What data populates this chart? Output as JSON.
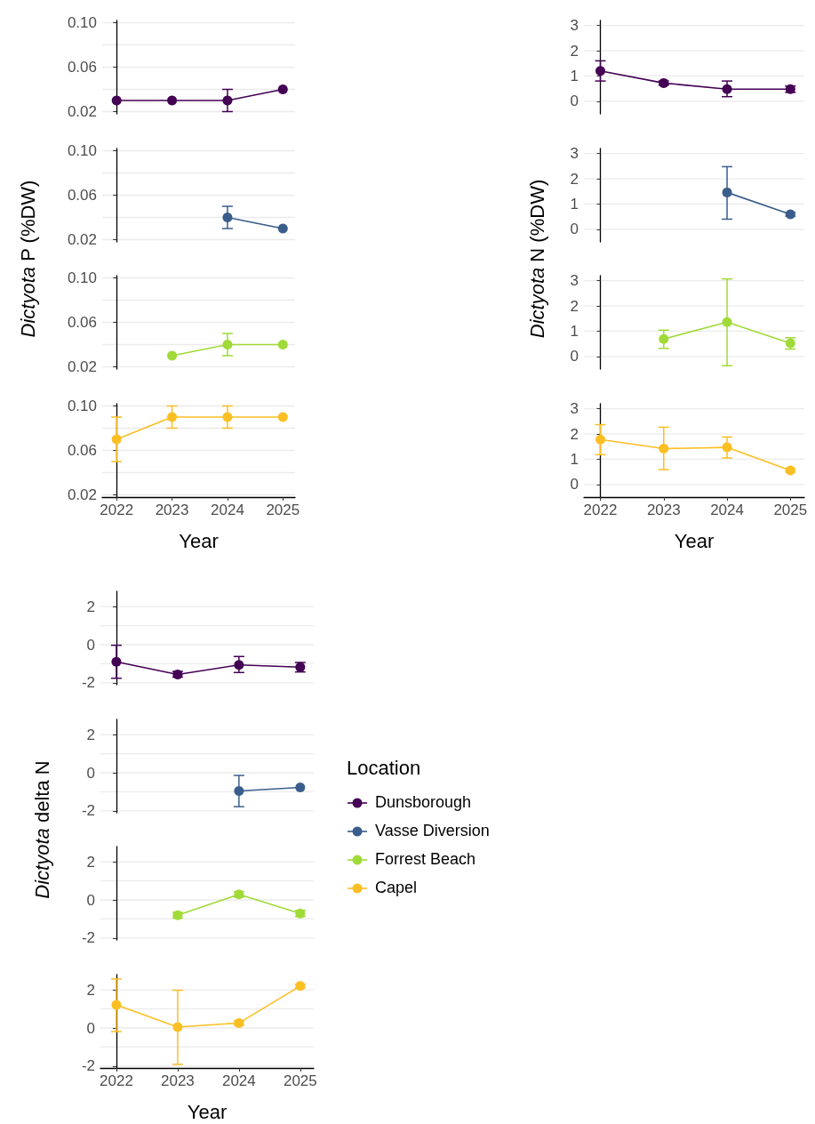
{
  "chart_data": [
    {
      "type": "line",
      "ylabel": "Dictyota P (%DW)",
      "categories": [
        "2022",
        "2023",
        "2024",
        "2025"
      ],
      "ylim": [
        0.018,
        0.102
      ],
      "yticks": [
        0.02,
        {
          "value": 0.04,
          "label": null
        },
        0.06,
        {
          "value": 0.08,
          "label": null
        },
        {
          "value": 0.1,
          "label": "0.10"
        }
      ],
      "grid": "y",
      "tick_labels": "y",
      "marker": "circle",
      "line_style": "solid",
      "series": [
        {
          "color": "#440154",
          "values": [
            0.03,
            0.03,
            0.03,
            0.04
          ],
          "errors": [
            null,
            null,
            [
              0.02,
              0.04
            ],
            null
          ]
        }
      ]
    },
    {
      "type": "line",
      "categories": [
        "2022",
        "2023",
        "2024",
        "2025"
      ],
      "ylim": [
        0.018,
        0.102
      ],
      "yticks": [
        0.02,
        {
          "value": 0.04,
          "label": null
        },
        0.06,
        {
          "value": 0.08,
          "label": null
        },
        {
          "value": 0.1,
          "label": "0.10"
        }
      ],
      "grid": "y",
      "tick_labels": "y",
      "marker": "circle",
      "line_style": "solid",
      "series": [
        {
          "color": "#3a5e8c",
          "values": [
            null,
            null,
            0.04,
            0.03
          ],
          "errors": [
            null,
            null,
            [
              0.03,
              0.05
            ],
            null
          ]
        }
      ]
    },
    {
      "type": "line",
      "categories": [
        "2022",
        "2023",
        "2024",
        "2025"
      ],
      "ylim": [
        0.018,
        0.102
      ],
      "yticks": [
        0.02,
        {
          "value": 0.04,
          "label": null
        },
        0.06,
        {
          "value": 0.08,
          "label": null
        },
        {
          "value": 0.1,
          "label": "0.10"
        }
      ],
      "grid": "y",
      "tick_labels": "y",
      "marker": "circle",
      "line_style": "solid",
      "series": [
        {
          "color": "#a0da39",
          "values": [
            null,
            0.03,
            0.04,
            0.04
          ],
          "errors": [
            null,
            null,
            [
              0.03,
              0.05
            ],
            null
          ]
        }
      ]
    },
    {
      "type": "line",
      "xlabel": "Year",
      "categories": [
        "2022",
        "2023",
        "2024",
        "2025"
      ],
      "ylim": [
        0.018,
        0.102
      ],
      "yticks": [
        0.02,
        {
          "value": 0.04,
          "label": null
        },
        0.06,
        {
          "value": 0.08,
          "label": null
        },
        {
          "value": 0.1,
          "label": "0.10"
        }
      ],
      "grid": "y",
      "marker": "circle",
      "line_style": "solid",
      "series": [
        {
          "color": "#fbbf24",
          "values": [
            0.07,
            0.09,
            0.09,
            0.09
          ],
          "errors": [
            [
              0.05,
              0.09
            ],
            [
              0.08,
              0.1
            ],
            [
              0.08,
              0.1
            ],
            null
          ]
        }
      ]
    },
    {
      "type": "line",
      "ylabel": "Dictyota N (%DW)",
      "categories": [
        "2022",
        "2023",
        "2024",
        "2025"
      ],
      "ylim": [
        -0.5,
        3.2
      ],
      "yticks": [
        0,
        1,
        2,
        3
      ],
      "grid": "y",
      "tick_labels": "y",
      "marker": "circle",
      "line_style": "solid",
      "series": [
        {
          "color": "#440154",
          "values": [
            1.2,
            0.72,
            0.48,
            0.48
          ],
          "errors": [
            [
              0.8,
              1.6
            ],
            [
              0.64,
              0.8
            ],
            [
              0.18,
              0.8
            ],
            [
              0.35,
              0.6
            ]
          ]
        }
      ]
    },
    {
      "type": "line",
      "categories": [
        "2022",
        "2023",
        "2024",
        "2025"
      ],
      "ylim": [
        -0.5,
        3.2
      ],
      "yticks": [
        0,
        1,
        2,
        3
      ],
      "grid": "y",
      "tick_labels": "y",
      "marker": "circle",
      "line_style": "solid",
      "series": [
        {
          "color": "#3a5e8c",
          "values": [
            null,
            null,
            1.46,
            0.59
          ],
          "errors": [
            null,
            null,
            [
              0.4,
              2.48
            ],
            [
              0.52,
              0.66
            ]
          ]
        }
      ]
    },
    {
      "type": "line",
      "categories": [
        "2022",
        "2023",
        "2024",
        "2025"
      ],
      "ylim": [
        -0.5,
        3.2
      ],
      "yticks": [
        0,
        1,
        2,
        3
      ],
      "grid": "y",
      "tick_labels": "y",
      "marker": "circle",
      "line_style": "solid",
      "series": [
        {
          "color": "#a0da39",
          "values": [
            null,
            0.69,
            1.36,
            0.52
          ],
          "errors": [
            null,
            [
              0.32,
              1.04
            ],
            [
              -0.37,
              3.07
            ],
            [
              0.29,
              0.74
            ]
          ]
        }
      ]
    },
    {
      "type": "line",
      "xlabel": "Year",
      "categories": [
        "2022",
        "2023",
        "2024",
        "2025"
      ],
      "ylim": [
        -0.5,
        3.2
      ],
      "yticks": [
        0,
        1,
        2,
        3
      ],
      "grid": "y",
      "marker": "circle",
      "line_style": "solid",
      "series": [
        {
          "color": "#fbbf24",
          "values": [
            1.78,
            1.42,
            1.47,
            0.56
          ],
          "errors": [
            [
              1.18,
              2.37
            ],
            [
              0.59,
              2.27
            ],
            [
              1.05,
              1.88
            ],
            [
              0.5,
              0.62
            ]
          ]
        }
      ]
    },
    {
      "type": "line",
      "ylabel": "Dictyota delta N",
      "legend_title": "Location",
      "legend": "right",
      "categories": [
        "2022",
        "2023",
        "2024",
        "2025"
      ],
      "ylim": [
        -2.1,
        2.8
      ],
      "yticks": [
        -2,
        {
          "value": -1,
          "label": null
        },
        0,
        {
          "value": 1,
          "label": null
        },
        2
      ],
      "grid": "y",
      "tick_labels": "y",
      "marker": "circle",
      "line_style": "solid",
      "series": [
        {
          "name": "Dunsborough",
          "color": "#440154",
          "values": [
            -0.9,
            -1.56,
            -1.06,
            -1.18
          ],
          "errors": [
            [
              -1.76,
              -0.03
            ],
            [
              -1.7,
              -1.4
            ],
            [
              -1.46,
              -0.62
            ],
            [
              -1.43,
              -0.93
            ]
          ]
        }
      ]
    },
    {
      "type": "line",
      "legend": "right",
      "categories": [
        "2022",
        "2023",
        "2024",
        "2025"
      ],
      "ylim": [
        -2.1,
        2.8
      ],
      "yticks": [
        -2,
        {
          "value": -1,
          "label": null
        },
        0,
        {
          "value": 1,
          "label": null
        },
        2
      ],
      "grid": "y",
      "tick_labels": "y",
      "marker": "circle",
      "line_style": "solid",
      "series": [
        {
          "name": "Vasse Diversion",
          "color": "#3a5e8c",
          "values": [
            null,
            null,
            -0.96,
            -0.77
          ],
          "errors": [
            null,
            null,
            [
              -1.78,
              -0.14
            ],
            null
          ]
        }
      ]
    },
    {
      "type": "line",
      "legend": "right",
      "categories": [
        "2022",
        "2023",
        "2024",
        "2025"
      ],
      "ylim": [
        -2.1,
        2.8
      ],
      "yticks": [
        -2,
        {
          "value": -1,
          "label": null
        },
        0,
        {
          "value": 1,
          "label": null
        },
        2
      ],
      "grid": "y",
      "tick_labels": "y",
      "marker": "circle",
      "line_style": "solid",
      "series": [
        {
          "name": "Forrest Beach",
          "color": "#a0da39",
          "values": [
            null,
            -0.8,
            0.29,
            -0.71
          ],
          "errors": [
            null,
            [
              -0.95,
              -0.65
            ],
            [
              0.15,
              0.43
            ],
            [
              -0.87,
              -0.55
            ]
          ]
        }
      ]
    },
    {
      "type": "line",
      "xlabel": "Year",
      "legend": "right",
      "categories": [
        "2022",
        "2023",
        "2024",
        "2025"
      ],
      "ylim": [
        -2.1,
        2.8
      ],
      "yticks": [
        -2,
        {
          "value": -1,
          "label": null
        },
        0,
        {
          "value": 1,
          "label": null
        },
        2
      ],
      "grid": "y",
      "marker": "circle",
      "line_style": "solid",
      "series": [
        {
          "name": "Capel",
          "color": "#fbbf24",
          "values": [
            1.21,
            0.05,
            0.26,
            2.2
          ],
          "errors": [
            [
              -0.19,
              2.57
            ],
            [
              -1.91,
              1.98
            ],
            [
              0.15,
              0.37
            ],
            [
              2.1,
              2.3
            ]
          ]
        }
      ]
    }
  ]
}
